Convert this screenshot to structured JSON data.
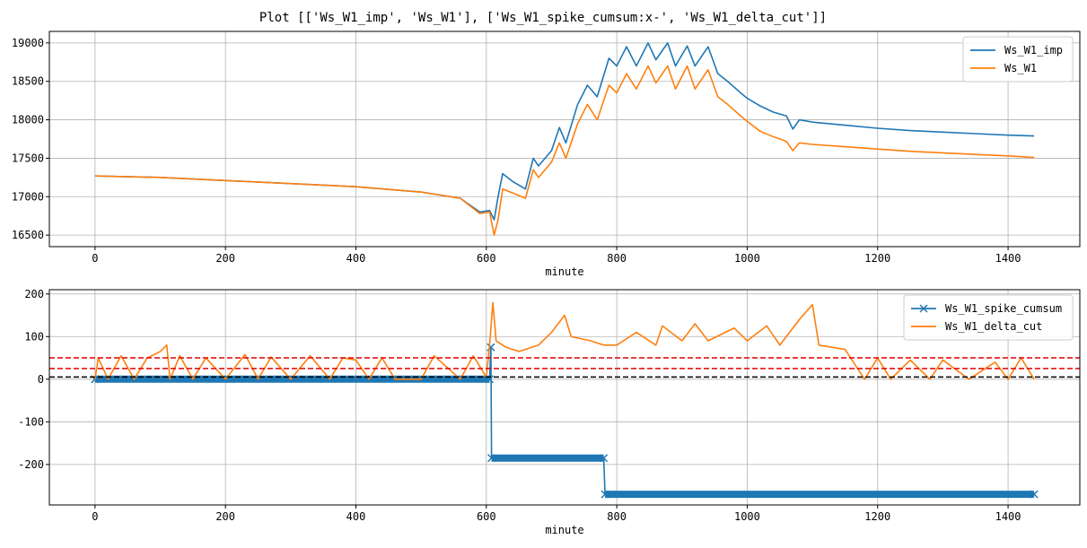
{
  "figure": {
    "title": "Plot [['Ws_W1_imp', 'Ws_W1'], ['Ws_W1_spike_cumsum:x-', 'Ws_W1_delta_cut']]"
  },
  "colors": {
    "blue": "#1f77b4",
    "orange": "#ff7f0e",
    "red_dashed": "#e00000",
    "black_dashed": "#000000",
    "grid": "#b0b0b0"
  },
  "chart_data": [
    {
      "type": "line",
      "xlabel": "minute",
      "ylabel": "",
      "xlim": [
        -70,
        1510
      ],
      "ylim": [
        16350,
        19150
      ],
      "xticks": [
        0,
        200,
        400,
        600,
        800,
        1000,
        1200,
        1400
      ],
      "yticks": [
        16500,
        17000,
        17500,
        18000,
        18500,
        19000
      ],
      "grid": true,
      "legend_position": "top-right",
      "series": [
        {
          "name": "Ws_W1_imp",
          "color": "#1f77b4",
          "x": [
            0,
            100,
            200,
            300,
            400,
            500,
            560,
            590,
            605,
            612,
            618,
            625,
            640,
            660,
            672,
            680,
            700,
            712,
            722,
            740,
            755,
            770,
            788,
            800,
            815,
            830,
            848,
            860,
            878,
            890,
            908,
            920,
            940,
            955,
            970,
            990,
            1000,
            1020,
            1040,
            1060,
            1070,
            1080,
            1100,
            1150,
            1200,
            1250,
            1300,
            1350,
            1400,
            1440
          ],
          "values": [
            17270,
            17250,
            17210,
            17170,
            17130,
            17060,
            16980,
            16800,
            16820,
            16700,
            17000,
            17300,
            17200,
            17100,
            17500,
            17400,
            17600,
            17900,
            17700,
            18200,
            18450,
            18300,
            18800,
            18700,
            18950,
            18700,
            19000,
            18780,
            19000,
            18700,
            18960,
            18700,
            18950,
            18600,
            18500,
            18350,
            18280,
            18180,
            18100,
            18050,
            17880,
            18000,
            17970,
            17930,
            17890,
            17860,
            17840,
            17820,
            17800,
            17790
          ]
        },
        {
          "name": "Ws_W1",
          "color": "#ff7f0e",
          "x": [
            0,
            100,
            200,
            300,
            400,
            500,
            560,
            590,
            605,
            612,
            618,
            625,
            640,
            660,
            672,
            680,
            700,
            712,
            722,
            740,
            755,
            770,
            788,
            800,
            815,
            830,
            848,
            860,
            878,
            890,
            908,
            920,
            940,
            955,
            970,
            990,
            1000,
            1020,
            1040,
            1060,
            1070,
            1080,
            1100,
            1150,
            1200,
            1250,
            1300,
            1350,
            1400,
            1440
          ],
          "values": [
            17270,
            17250,
            17210,
            17170,
            17130,
            17060,
            16980,
            16780,
            16800,
            16500,
            16700,
            17100,
            17050,
            16980,
            17350,
            17250,
            17450,
            17700,
            17500,
            17950,
            18200,
            18000,
            18450,
            18350,
            18600,
            18400,
            18700,
            18480,
            18700,
            18400,
            18700,
            18400,
            18650,
            18300,
            18200,
            18050,
            17980,
            17850,
            17780,
            17720,
            17600,
            17700,
            17680,
            17650,
            17620,
            17590,
            17570,
            17550,
            17530,
            17510
          ]
        }
      ]
    },
    {
      "type": "line",
      "xlabel": "minute",
      "ylabel": "",
      "xlim": [
        -70,
        1510
      ],
      "ylim": [
        -295,
        210
      ],
      "xticks": [
        0,
        200,
        400,
        600,
        800,
        1000,
        1200,
        1400
      ],
      "yticks": [
        -200,
        -100,
        0,
        100,
        200
      ],
      "grid": true,
      "legend_position": "top-right",
      "hlines": [
        {
          "y": 50,
          "color": "#e00000",
          "style": "dashed"
        },
        {
          "y": 25,
          "color": "#e00000",
          "style": "dashed"
        },
        {
          "y": 5,
          "color": "#000000",
          "style": "dashed"
        }
      ],
      "series": [
        {
          "name": "Ws_W1_spike_cumsum",
          "color": "#1f77b4",
          "marker": "x",
          "x": [
            0,
            605,
            607,
            608,
            780,
            782,
            1440
          ],
          "values": [
            0,
            0,
            75,
            -185,
            -185,
            -270,
            -270
          ]
        },
        {
          "name": "Ws_W1_delta_cut",
          "color": "#ff7f0e",
          "x": [
            0,
            5,
            20,
            40,
            60,
            80,
            100,
            110,
            115,
            130,
            150,
            170,
            200,
            230,
            250,
            270,
            300,
            330,
            360,
            380,
            400,
            420,
            440,
            460,
            500,
            520,
            560,
            580,
            600,
            605,
            610,
            615,
            630,
            650,
            680,
            700,
            720,
            730,
            760,
            780,
            800,
            830,
            860,
            870,
            900,
            920,
            940,
            980,
            1000,
            1030,
            1050,
            1080,
            1100,
            1110,
            1130,
            1150,
            1180,
            1200,
            1220,
            1250,
            1280,
            1300,
            1340,
            1380,
            1400,
            1420,
            1440
          ],
          "values": [
            0,
            50,
            0,
            55,
            0,
            50,
            65,
            80,
            0,
            55,
            0,
            50,
            0,
            58,
            0,
            52,
            0,
            55,
            0,
            50,
            45,
            0,
            50,
            0,
            0,
            55,
            0,
            55,
            5,
            80,
            180,
            90,
            75,
            65,
            80,
            110,
            150,
            100,
            90,
            80,
            80,
            110,
            80,
            125,
            90,
            130,
            90,
            120,
            90,
            125,
            80,
            140,
            175,
            80,
            75,
            70,
            0,
            50,
            0,
            45,
            0,
            45,
            0,
            40,
            0,
            50,
            0
          ]
        }
      ]
    }
  ]
}
